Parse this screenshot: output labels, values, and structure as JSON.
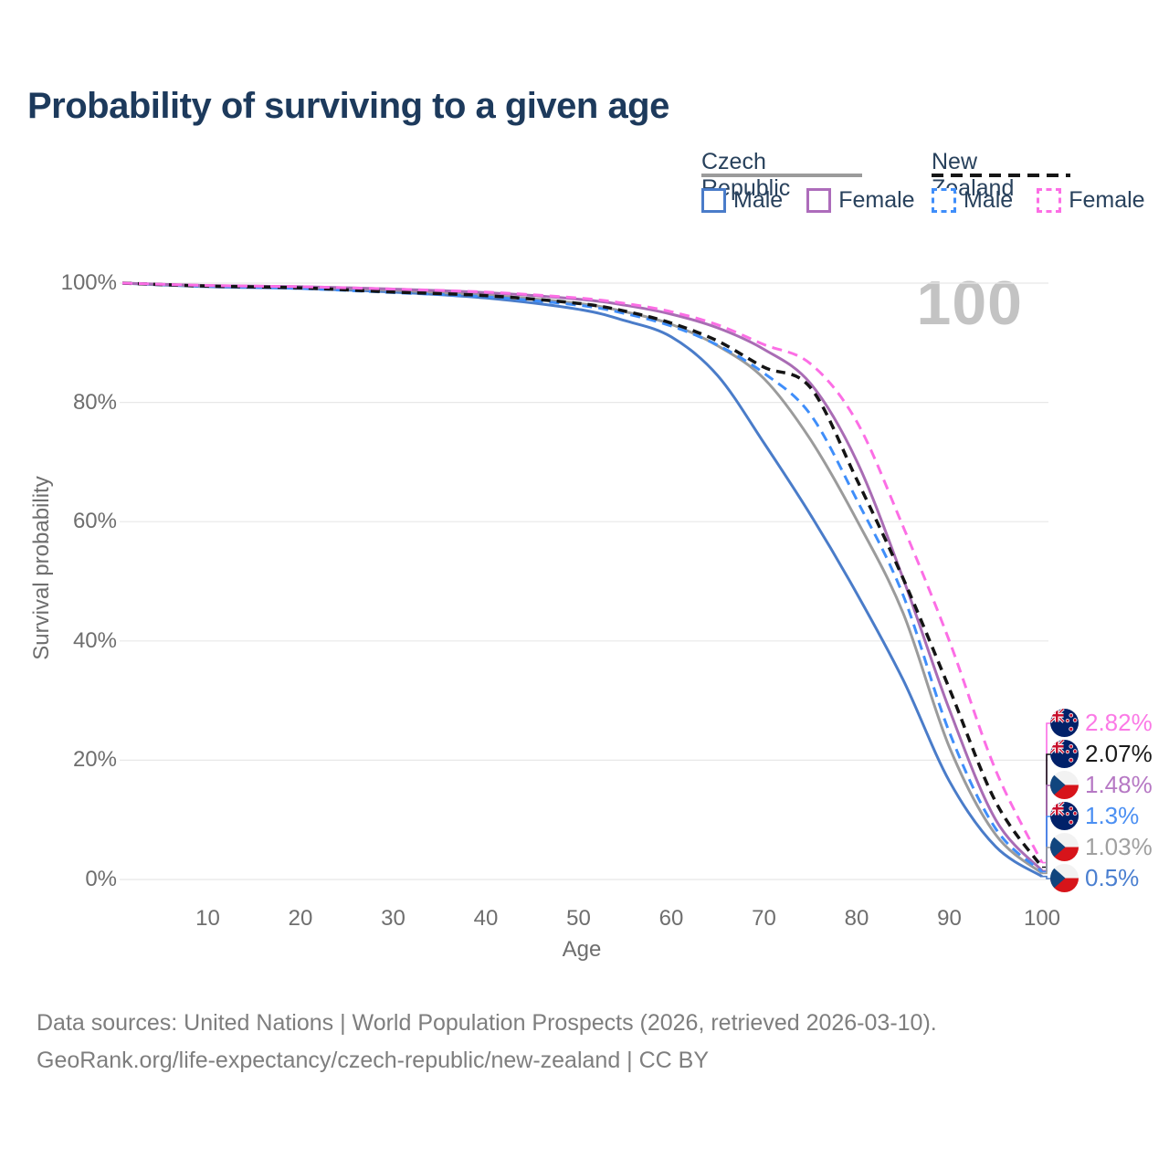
{
  "title": "Probability of surviving to a given age",
  "watermark": "100",
  "legend": {
    "groups": [
      {
        "label": "Czech Republic",
        "line_style": "solid",
        "line_color": "#9b9b9b",
        "items": [
          {
            "label": "Male",
            "color": "#4a7cc9"
          },
          {
            "label": "Female",
            "color": "#ad6cbb"
          }
        ]
      },
      {
        "label": "New Zealand",
        "line_style": "dashed",
        "line_color": "#161616",
        "items": [
          {
            "label": "Male",
            "color": "#3f8efa"
          },
          {
            "label": "Female",
            "color": "#fc6ee5"
          }
        ]
      }
    ]
  },
  "chart_data": {
    "type": "line",
    "title": "Probability of surviving to a given age",
    "xlabel": "Age",
    "ylabel": "Survival probability",
    "xlim": [
      0,
      100
    ],
    "ylim": [
      0,
      100
    ],
    "xticks": [
      10,
      20,
      30,
      40,
      50,
      60,
      70,
      80,
      90,
      100
    ],
    "yticks": [
      0,
      20,
      40,
      60,
      80,
      100
    ],
    "ytick_format": "percent",
    "grid": "horizontal",
    "legend_position": "top-right",
    "x_ages": [
      0,
      10,
      20,
      30,
      40,
      50,
      55,
      60,
      65,
      70,
      75,
      80,
      85,
      90,
      95,
      100
    ],
    "series": [
      {
        "id": "czech_male",
        "country": "Czech Republic",
        "sex": "Male",
        "line": "solid",
        "color": "#4a7cc9",
        "width": 3,
        "values": [
          100,
          99.4,
          99.1,
          98.5,
          97.5,
          95.6,
          93.7,
          91.0,
          84.5,
          73.2,
          61.2,
          48.0,
          33.5,
          16.5,
          5.5,
          0.5
        ]
      },
      {
        "id": "czech_total",
        "country": "Czech Republic",
        "sex": "Total",
        "line": "solid",
        "color": "#9b9b9b",
        "width": 3,
        "values": [
          100,
          99.5,
          99.3,
          98.8,
          98.0,
          96.6,
          95.2,
          93.1,
          89.5,
          84.0,
          73.8,
          60.3,
          44.7,
          22.2,
          7.5,
          1.03
        ]
      },
      {
        "id": "czech_female",
        "country": "Czech Republic",
        "sex": "Female",
        "line": "solid",
        "color": "#a96cb4",
        "width": 3,
        "values": [
          100,
          99.6,
          99.4,
          99.0,
          98.4,
          97.3,
          96.3,
          94.8,
          92.5,
          88.9,
          83.2,
          70.2,
          50.5,
          28.5,
          10.0,
          1.48
        ]
      },
      {
        "id": "nz_male",
        "country": "New Zealand",
        "sex": "Male",
        "line": "dashed",
        "color": "#3f8efa",
        "width": 3,
        "dash": "11 7",
        "values": [
          100,
          99.5,
          99.1,
          98.4,
          97.7,
          96.3,
          94.9,
          92.8,
          89.6,
          84.9,
          78.0,
          63.7,
          47.7,
          24.7,
          8.5,
          1.3
        ]
      },
      {
        "id": "nz_total",
        "country": "New Zealand",
        "sex": "Total",
        "line": "dashed",
        "color": "#141414",
        "width": 3.5,
        "dash": "10 7",
        "values": [
          100,
          99.5,
          99.2,
          98.5,
          97.9,
          96.6,
          95.3,
          93.3,
          90.3,
          85.9,
          82.5,
          67.1,
          50.5,
          32.0,
          13.0,
          2.07
        ]
      },
      {
        "id": "nz_female",
        "country": "New Zealand",
        "sex": "Female",
        "line": "dashed",
        "color": "#fc6ee5",
        "width": 3,
        "dash": "11 7",
        "values": [
          100,
          99.6,
          99.4,
          99.0,
          98.5,
          97.5,
          96.6,
          95.2,
          93.0,
          89.7,
          86.5,
          76.8,
          59.2,
          40.0,
          18.3,
          2.82
        ]
      }
    ]
  },
  "end_labels": [
    {
      "series": "nz_female",
      "value": "2.82%",
      "color": "#fb79e6",
      "flag": "nz"
    },
    {
      "series": "nz_total",
      "value": "2.07%",
      "color": "#1a1a1a",
      "flag": "nz"
    },
    {
      "series": "czech_female",
      "value": "1.48%",
      "color": "#b678c4",
      "flag": "cz"
    },
    {
      "series": "nz_male",
      "value": "1.3%",
      "color": "#4b8ff2",
      "flag": "nz"
    },
    {
      "series": "czech_total",
      "value": "1.03%",
      "color": "#a0a0a0",
      "flag": "cz"
    },
    {
      "series": "czech_male",
      "value": "0.5%",
      "color": "#4a7fd0",
      "flag": "cz"
    }
  ],
  "footer": {
    "line1": "Data sources: United Nations | World Population Prospects (2026, retrieved 2026-03-10).",
    "line2": "GeoRank.org/life-expectancy/czech-republic/new-zealand | CC BY"
  },
  "colors": {
    "title": "#1d3a5c",
    "axis_text": "#6e6e6e",
    "grid": "#e8e8e8",
    "watermark": "#c3c3c3",
    "footer": "#7e7e7e",
    "background": "#ffffff"
  }
}
